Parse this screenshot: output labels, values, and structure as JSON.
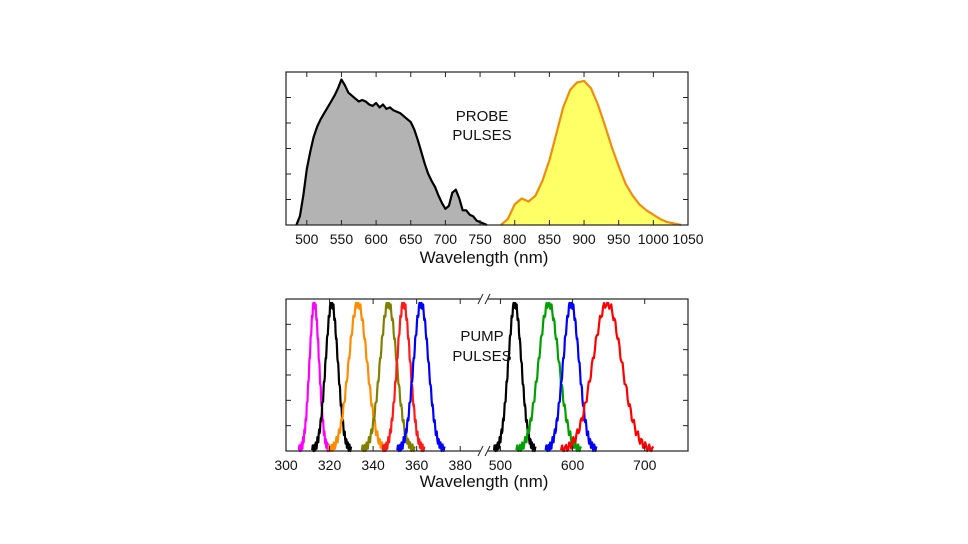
{
  "chart_data": [
    {
      "id": "probe",
      "type": "area",
      "xlabel": "Wavelength (nm)",
      "ylabel": "",
      "xlim": [
        470,
        1050
      ],
      "ylim": [
        0,
        1
      ],
      "xticks": [
        500,
        550,
        600,
        650,
        700,
        750,
        800,
        850,
        900,
        950,
        1000,
        1050
      ],
      "annotation": [
        "PROBE",
        "PULSES"
      ],
      "series": [
        {
          "color": "#000000",
          "fill": "#b3b3b3",
          "x": [
            485,
            490,
            495,
            500,
            505,
            510,
            515,
            520,
            525,
            530,
            535,
            540,
            545,
            550,
            555,
            560,
            565,
            570,
            575,
            580,
            585,
            590,
            595,
            600,
            605,
            610,
            615,
            620,
            625,
            630,
            635,
            640,
            645,
            650,
            655,
            660,
            665,
            670,
            675,
            680,
            685,
            690,
            695,
            700,
            705,
            710,
            715,
            720,
            725,
            730,
            735,
            740,
            745,
            750,
            755,
            760
          ],
          "y": [
            0.0,
            0.06,
            0.2,
            0.38,
            0.5,
            0.6,
            0.67,
            0.72,
            0.76,
            0.8,
            0.84,
            0.88,
            0.93,
            0.99,
            0.95,
            0.9,
            0.88,
            0.86,
            0.84,
            0.85,
            0.84,
            0.82,
            0.81,
            0.83,
            0.8,
            0.82,
            0.79,
            0.8,
            0.78,
            0.77,
            0.76,
            0.74,
            0.72,
            0.7,
            0.65,
            0.58,
            0.5,
            0.42,
            0.35,
            0.3,
            0.26,
            0.2,
            0.15,
            0.11,
            0.13,
            0.22,
            0.24,
            0.18,
            0.1,
            0.1,
            0.07,
            0.06,
            0.03,
            0.02,
            0.01,
            0.0
          ]
        },
        {
          "color": "#f28c0f",
          "fill": "#ffff66",
          "x": [
            780,
            790,
            800,
            810,
            820,
            830,
            840,
            850,
            860,
            870,
            880,
            890,
            900,
            910,
            920,
            930,
            940,
            950,
            960,
            970,
            980,
            990,
            1000,
            1010,
            1020,
            1030,
            1040
          ],
          "y": [
            0.0,
            0.04,
            0.14,
            0.18,
            0.16,
            0.2,
            0.3,
            0.44,
            0.62,
            0.8,
            0.92,
            0.97,
            0.98,
            0.93,
            0.82,
            0.68,
            0.53,
            0.4,
            0.28,
            0.2,
            0.14,
            0.1,
            0.07,
            0.04,
            0.02,
            0.01,
            0.0
          ]
        }
      ]
    },
    {
      "id": "pump",
      "type": "line",
      "xlabel": "Wavelength (nm)",
      "ylabel": "",
      "xlim": [
        300,
        390
      ],
      "x_break_to": [
        480,
        760
      ],
      "ylim": [
        0,
        1
      ],
      "xticks_left": [
        300,
        320,
        340,
        360,
        380
      ],
      "xticks_right": [
        500,
        600,
        700
      ],
      "annotation": [
        "PUMP",
        "PULSES"
      ],
      "series": [
        {
          "color": "#ff00ff",
          "center": 313,
          "width": 2.2
        },
        {
          "color": "#000000",
          "center": 321,
          "width": 2.8
        },
        {
          "color": "#ff8c00",
          "center": 333,
          "width": 4.2
        },
        {
          "color": "#808000",
          "center": 347,
          "width": 3.8
        },
        {
          "color": "#ff1a1a",
          "center": 354,
          "width": 3.0
        },
        {
          "color": "#0000ff",
          "center": 362,
          "width": 3.4
        },
        {
          "color": "#000000",
          "center": 520,
          "width": 9
        },
        {
          "color": "#00a000",
          "center": 567,
          "width": 14
        },
        {
          "color": "#0000ff",
          "center": 598,
          "width": 11
        },
        {
          "color": "#ff0000",
          "center": 648,
          "width": 20
        }
      ]
    }
  ]
}
